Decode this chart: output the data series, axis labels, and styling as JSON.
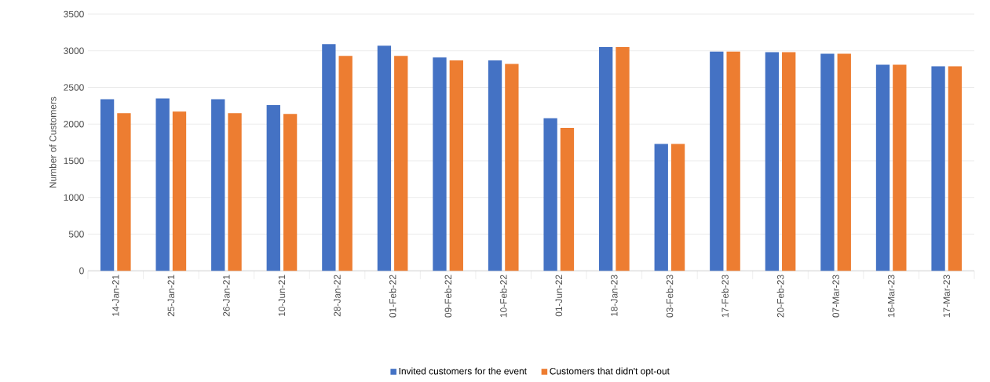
{
  "chart_data": {
    "type": "bar",
    "ylabel": "Number of Customers",
    "categories": [
      "14-Jan-21",
      "25-Jan-21",
      "26-Jan-21",
      "10-Jun-21",
      "28-Jan-22",
      "01-Feb-22",
      "09-Feb-22",
      "10-Feb-22",
      "01-Jun-22",
      "18-Jan-23",
      "03-Feb-23",
      "17-Feb-23",
      "20-Feb-23",
      "07-Mar-23",
      "16-Mar-23",
      "17-Mar-23"
    ],
    "series": [
      {
        "name": "Invited customers for the event",
        "color": "#4472c4",
        "values": [
          2340,
          2350,
          2340,
          2260,
          3090,
          3070,
          2910,
          2870,
          2080,
          3050,
          1730,
          2990,
          2980,
          2960,
          2810,
          2790
        ]
      },
      {
        "name": "Customers that didn't opt-out",
        "color": "#ed7d31",
        "values": [
          2150,
          2170,
          2150,
          2140,
          2930,
          2930,
          2870,
          2820,
          1950,
          3050,
          1730,
          2990,
          2980,
          2960,
          2810,
          2790
        ]
      }
    ],
    "ylim": [
      0,
      3500
    ],
    "yticks": [
      0,
      500,
      1000,
      1500,
      2000,
      2500,
      3000,
      3500
    ],
    "grid": "y",
    "legend": "bottom"
  }
}
